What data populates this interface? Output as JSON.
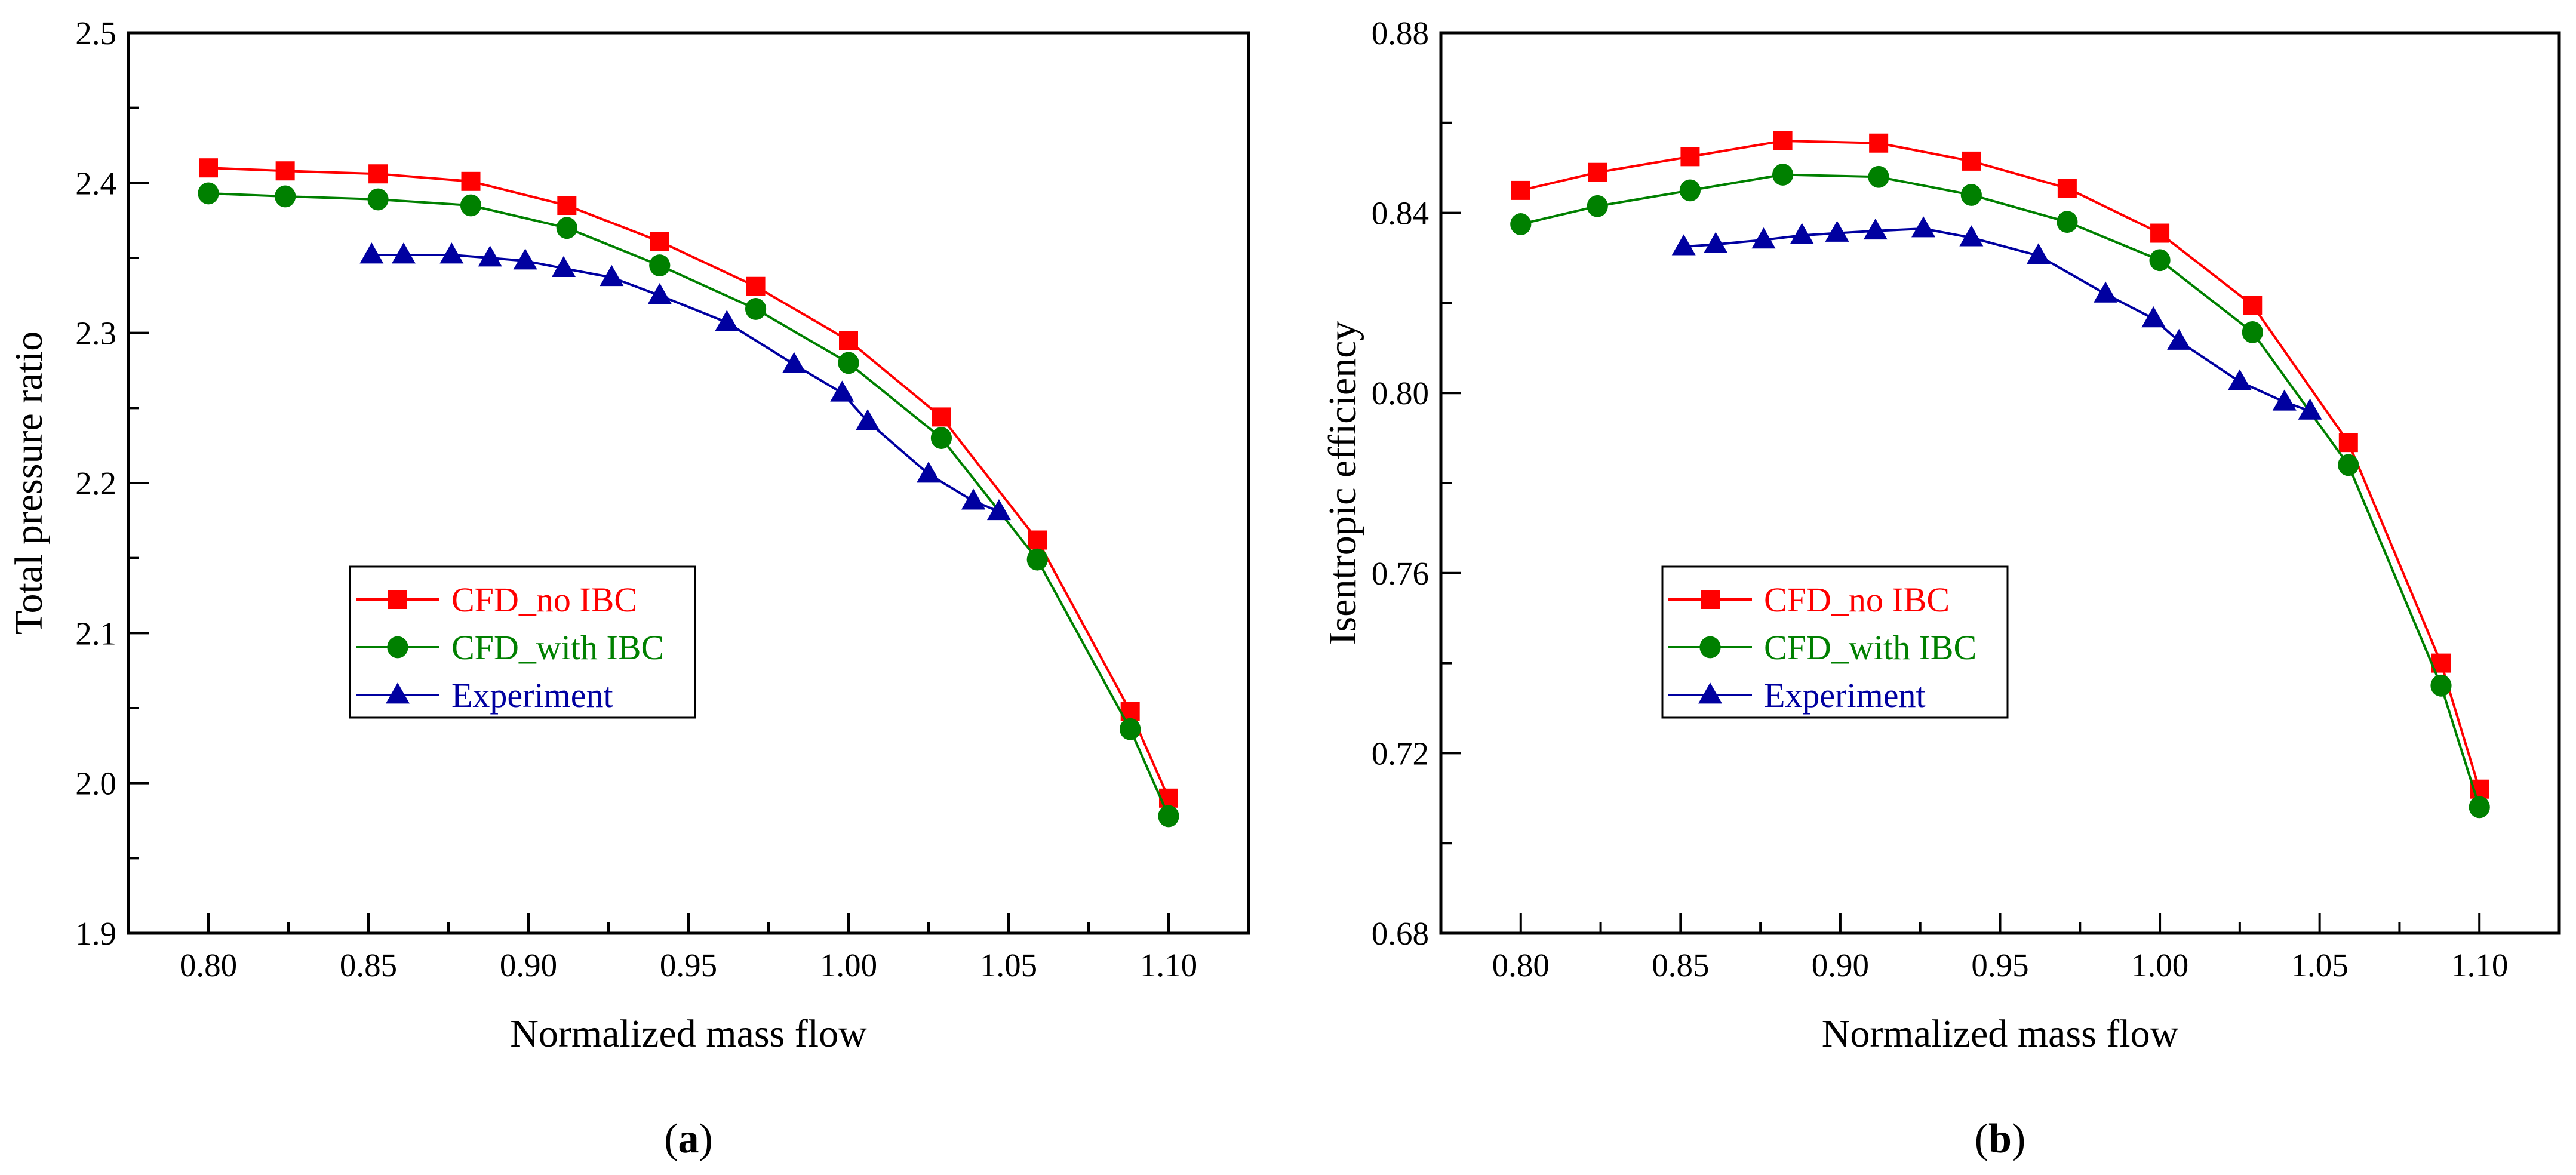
{
  "chart_data": [
    {
      "type": "line",
      "panel_label": "(a)",
      "panel_letter": "a",
      "xlabel": "Normalized mass flow",
      "ylabel": "Total pressure ratio",
      "xlim": [
        0.775,
        1.125
      ],
      "ylim": [
        1.9,
        2.5
      ],
      "xticks": [
        0.8,
        0.85,
        0.9,
        0.95,
        1.0,
        1.05,
        1.1
      ],
      "xtick_labels": [
        "0.80",
        "0.85",
        "0.90",
        "0.95",
        "1.00",
        "1.05",
        "1.10"
      ],
      "xminor": 0.025,
      "yticks": [
        1.9,
        2.0,
        2.1,
        2.2,
        2.3,
        2.4,
        2.5
      ],
      "ytick_labels": [
        "1.9",
        "2.0",
        "2.1",
        "2.2",
        "2.3",
        "2.4",
        "2.5"
      ],
      "yminor": 0.05,
      "grid": false,
      "legend_position": "lower-left-center",
      "series": [
        {
          "name": "CFD_no IBC",
          "color": "#ff0000",
          "marker": "square",
          "x": [
            0.8,
            0.824,
            0.853,
            0.882,
            0.912,
            0.941,
            0.971,
            1.0,
            1.029,
            1.059,
            1.088,
            1.1
          ],
          "y": [
            2.41,
            2.408,
            2.406,
            2.401,
            2.385,
            2.361,
            2.331,
            2.295,
            2.244,
            2.162,
            2.048,
            1.99
          ]
        },
        {
          "name": "CFD_with IBC",
          "color": "#008000",
          "marker": "circle",
          "x": [
            0.8,
            0.824,
            0.853,
            0.882,
            0.912,
            0.941,
            0.971,
            1.0,
            1.029,
            1.059,
            1.088,
            1.1
          ],
          "y": [
            2.393,
            2.391,
            2.389,
            2.385,
            2.37,
            2.345,
            2.316,
            2.28,
            2.23,
            2.149,
            2.036,
            1.978
          ]
        },
        {
          "name": "Experiment",
          "color": "#0000a0",
          "marker": "triangle",
          "x": [
            0.851,
            0.861,
            0.876,
            0.888,
            0.899,
            0.911,
            0.926,
            0.941,
            0.962,
            0.983,
            0.998,
            1.006,
            1.025,
            1.039,
            1.047
          ],
          "y": [
            2.352,
            2.352,
            2.352,
            2.35,
            2.348,
            2.343,
            2.337,
            2.325,
            2.307,
            2.279,
            2.26,
            2.241,
            2.206,
            2.188,
            2.181
          ]
        }
      ]
    },
    {
      "type": "line",
      "panel_label": "(b)",
      "panel_letter": "b",
      "xlabel": "Normalized mass flow",
      "ylabel": "Isentropic efficiency",
      "xlim": [
        0.775,
        1.125
      ],
      "ylim": [
        0.68,
        0.88
      ],
      "xticks": [
        0.8,
        0.85,
        0.9,
        0.95,
        1.0,
        1.05,
        1.1
      ],
      "xtick_labels": [
        "0.80",
        "0.85",
        "0.90",
        "0.95",
        "1.00",
        "1.05",
        "1.10"
      ],
      "xminor": 0.025,
      "yticks": [
        0.68,
        0.72,
        0.76,
        0.8,
        0.84,
        0.88
      ],
      "ytick_labels": [
        "0.68",
        "0.72",
        "0.76",
        "0.80",
        "0.84",
        "0.88"
      ],
      "yminor": 0.02,
      "grid": false,
      "legend_position": "lower-left-center",
      "series": [
        {
          "name": "CFD_no IBC",
          "color": "#ff0000",
          "marker": "square",
          "x": [
            0.8,
            0.824,
            0.853,
            0.882,
            0.912,
            0.941,
            0.971,
            1.0,
            1.029,
            1.059,
            1.088,
            1.1
          ],
          "y": [
            0.845,
            0.849,
            0.8525,
            0.856,
            0.8555,
            0.8515,
            0.8455,
            0.8355,
            0.8195,
            0.789,
            0.74,
            0.712
          ]
        },
        {
          "name": "CFD_with IBC",
          "color": "#008000",
          "marker": "circle",
          "x": [
            0.8,
            0.824,
            0.853,
            0.882,
            0.912,
            0.941,
            0.971,
            1.0,
            1.029,
            1.059,
            1.088,
            1.1
          ],
          "y": [
            0.8375,
            0.8415,
            0.845,
            0.8485,
            0.848,
            0.844,
            0.838,
            0.8295,
            0.8135,
            0.784,
            0.735,
            0.708
          ]
        },
        {
          "name": "Experiment",
          "color": "#0000a0",
          "marker": "triangle",
          "x": [
            0.851,
            0.861,
            0.876,
            0.888,
            0.899,
            0.911,
            0.926,
            0.941,
            0.962,
            0.983,
            0.998,
            1.006,
            1.025,
            1.039,
            1.047
          ],
          "y": [
            0.8325,
            0.833,
            0.834,
            0.835,
            0.8355,
            0.836,
            0.8365,
            0.8345,
            0.8305,
            0.822,
            0.8165,
            0.8115,
            0.8025,
            0.798,
            0.796
          ]
        }
      ]
    }
  ]
}
